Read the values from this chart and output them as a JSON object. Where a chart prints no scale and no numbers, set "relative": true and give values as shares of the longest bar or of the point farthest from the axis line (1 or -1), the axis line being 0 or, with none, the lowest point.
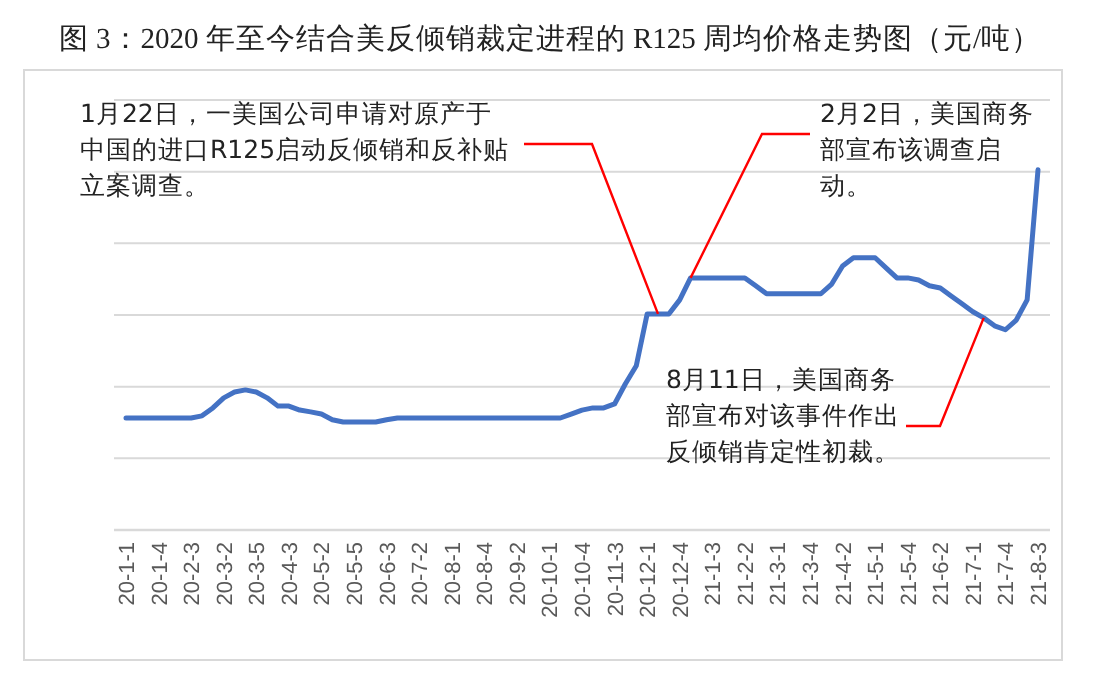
{
  "chart_data": {
    "type": "line",
    "title": "图 3：2020 年至今结合美反倾销裁定进程的 R125 周均价格走势图（元/吨）",
    "relative": true,
    "grid": "y",
    "color": "#4472c4",
    "categories": [
      "20-1-1",
      null,
      null,
      "20-1-4",
      null,
      null,
      "20-2-3",
      null,
      null,
      "20-3-2",
      null,
      null,
      "20-3-5",
      null,
      null,
      "20-4-3",
      null,
      null,
      "20-5-2",
      null,
      null,
      "20-5-5",
      null,
      null,
      "20-6-3",
      null,
      null,
      "20-7-2",
      null,
      null,
      "20-8-1",
      null,
      null,
      "20-8-4",
      null,
      null,
      "20-9-2",
      null,
      null,
      "20-10-1",
      null,
      null,
      "20-10-4",
      null,
      null,
      "20-11-3",
      null,
      null,
      "20-12-1",
      null,
      null,
      "20-12-4",
      null,
      null,
      "21-1-3",
      null,
      null,
      "21-2-2",
      null,
      null,
      "21-3-1",
      null,
      null,
      "21-3-4",
      null,
      null,
      "21-4-2",
      null,
      null,
      "21-5-1",
      null,
      null,
      "21-5-4",
      null,
      null,
      "21-6-2",
      null,
      null,
      "21-7-1",
      null,
      null,
      "21-7-4",
      null,
      null,
      "21-8-3"
    ],
    "values": [
      0.311,
      0.311,
      0.311,
      0.311,
      0.311,
      0.311,
      0.311,
      0.317,
      0.339,
      0.367,
      0.383,
      0.389,
      0.383,
      0.367,
      0.344,
      0.344,
      0.333,
      0.328,
      0.322,
      0.306,
      0.3,
      0.3,
      0.3,
      0.3,
      0.306,
      0.311,
      0.311,
      0.311,
      0.311,
      0.311,
      0.311,
      0.311,
      0.311,
      0.311,
      0.311,
      0.311,
      0.311,
      0.311,
      0.311,
      0.311,
      0.311,
      0.322,
      0.333,
      0.339,
      0.339,
      0.35,
      0.406,
      0.456,
      0.6,
      0.6,
      0.6,
      0.639,
      0.7,
      0.7,
      0.7,
      0.7,
      0.7,
      0.7,
      0.678,
      0.656,
      0.656,
      0.656,
      0.656,
      0.656,
      0.656,
      0.683,
      0.733,
      0.756,
      0.756,
      0.756,
      0.728,
      0.7,
      0.7,
      0.694,
      0.678,
      0.672,
      0.65,
      0.628,
      0.606,
      0.589,
      0.567,
      0.556,
      0.583,
      0.639,
      1
    ],
    "annotations": [
      "1月22日，一美国公司申请对原产于中国的进口R125启动反倾销和反补贴立案调查。",
      "2月2日，美国商务部宣布该调查启动。",
      "8月11日，美国商务部宣布对该事件作出反倾销肯定性初裁。"
    ]
  }
}
